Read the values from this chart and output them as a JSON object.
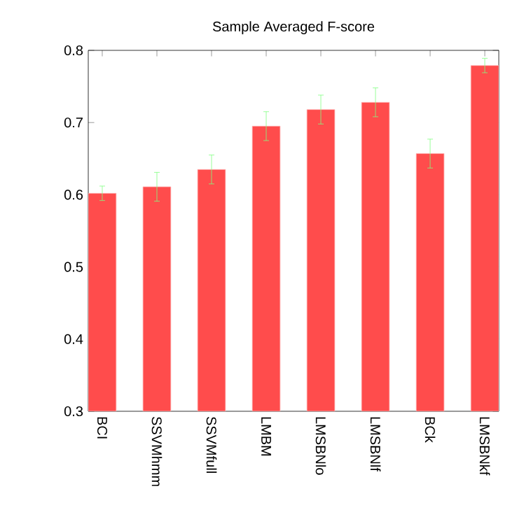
{
  "chart_data": {
    "type": "bar",
    "title": "Sample Averaged F-score",
    "categories": [
      "BCI",
      "SSVMhmm",
      "SSVMfull",
      "LMBM",
      "LMSBNlo",
      "LMSBNlf",
      "BCk",
      "LMSBNkf"
    ],
    "values": [
      0.602,
      0.611,
      0.635,
      0.695,
      0.718,
      0.728,
      0.657,
      0.779
    ],
    "errors": [
      0.01,
      0.02,
      0.02,
      0.02,
      0.02,
      0.02,
      0.02,
      0.01
    ],
    "color": "#ff4c4c",
    "ylim": [
      0.3,
      0.8
    ],
    "yticks": [
      0.3,
      0.4,
      0.5,
      0.6,
      0.7,
      0.8
    ]
  }
}
